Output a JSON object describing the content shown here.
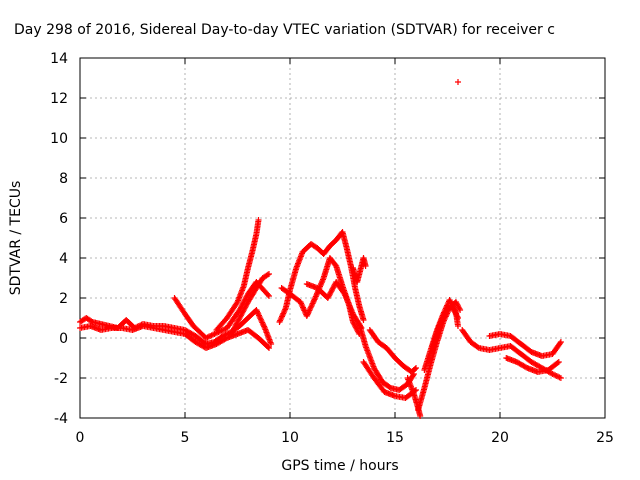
{
  "chart_data": {
    "type": "scatter",
    "title": "Day 298 of 2016, Sidereal Day-to-day VTEC variation (SDTVAR) for receiver c",
    "xlabel": "GPS time / hours",
    "ylabel": "SDTVAR / TECUs",
    "xlim": [
      0,
      25
    ],
    "ylim": [
      -4,
      14
    ],
    "xticks": [
      0,
      5,
      10,
      15,
      20,
      25
    ],
    "yticks": [
      -4,
      -2,
      0,
      2,
      4,
      6,
      8,
      10,
      12,
      14
    ],
    "grid": true,
    "legend": "none",
    "marker": "+",
    "color": "#ff0000",
    "series": [
      {
        "name": "band-a",
        "points": [
          [
            0,
            0.8
          ],
          [
            0.3,
            1.0
          ],
          [
            0.6,
            0.8
          ],
          [
            1.0,
            0.7
          ],
          [
            1.4,
            0.6
          ],
          [
            1.8,
            0.5
          ],
          [
            2.2,
            0.9
          ],
          [
            2.6,
            0.5
          ],
          [
            3.0,
            0.7
          ],
          [
            3.5,
            0.6
          ],
          [
            4.0,
            0.6
          ],
          [
            4.5,
            0.5
          ],
          [
            5.0,
            0.4
          ],
          [
            5.5,
            0.1
          ],
          [
            6.0,
            -0.3
          ],
          [
            6.4,
            -0.2
          ],
          [
            6.8,
            0.1
          ],
          [
            7.2,
            0.3
          ],
          [
            7.6,
            0.6
          ],
          [
            8.0,
            1.0
          ],
          [
            8.4,
            1.4
          ],
          [
            8.8,
            0.5
          ],
          [
            9.1,
            -0.3
          ]
        ]
      },
      {
        "name": "band-b",
        "points": [
          [
            0,
            0.5
          ],
          [
            0.5,
            0.6
          ],
          [
            1.0,
            0.4
          ],
          [
            1.5,
            0.5
          ],
          [
            2.0,
            0.5
          ],
          [
            2.5,
            0.4
          ],
          [
            3.0,
            0.6
          ],
          [
            3.5,
            0.5
          ],
          [
            4.0,
            0.4
          ],
          [
            4.5,
            0.3
          ],
          [
            5.0,
            0.2
          ],
          [
            5.5,
            -0.2
          ],
          [
            6.0,
            -0.5
          ],
          [
            6.5,
            -0.3
          ],
          [
            7.0,
            0.0
          ],
          [
            7.5,
            0.2
          ],
          [
            8.0,
            0.4
          ],
          [
            8.5,
            0.0
          ],
          [
            9.0,
            -0.5
          ]
        ]
      },
      {
        "name": "rise-1",
        "points": [
          [
            6.5,
            0.4
          ],
          [
            7.0,
            1.0
          ],
          [
            7.5,
            1.8
          ],
          [
            7.8,
            2.6
          ],
          [
            8.0,
            3.5
          ],
          [
            8.2,
            4.3
          ],
          [
            8.4,
            5.2
          ],
          [
            8.5,
            5.9
          ]
        ]
      },
      {
        "name": "rise-2",
        "points": [
          [
            7.2,
            0.2
          ],
          [
            7.6,
            1.0
          ],
          [
            8.0,
            1.8
          ],
          [
            8.4,
            2.5
          ],
          [
            8.7,
            3.0
          ],
          [
            9.0,
            3.2
          ]
        ]
      },
      {
        "name": "rise-3",
        "points": [
          [
            4.5,
            2.0
          ],
          [
            5.0,
            1.2
          ],
          [
            5.4,
            0.6
          ],
          [
            6.0,
            0.0
          ],
          [
            7.0,
            0.5
          ],
          [
            7.6,
            1.4
          ],
          [
            8.0,
            2.2
          ],
          [
            8.4,
            2.8
          ],
          [
            9.0,
            2.1
          ]
        ]
      },
      {
        "name": "hump-a",
        "points": [
          [
            9.5,
            0.8
          ],
          [
            9.8,
            1.5
          ],
          [
            10.0,
            2.4
          ],
          [
            10.3,
            3.5
          ],
          [
            10.6,
            4.3
          ],
          [
            11.0,
            4.7
          ],
          [
            11.3,
            4.5
          ],
          [
            11.6,
            4.2
          ],
          [
            11.9,
            4.6
          ],
          [
            12.2,
            4.9
          ],
          [
            12.5,
            5.3
          ],
          [
            12.7,
            4.5
          ],
          [
            12.9,
            3.6
          ],
          [
            13.1,
            2.5
          ],
          [
            13.3,
            1.6
          ],
          [
            13.5,
            0.9
          ]
        ]
      },
      {
        "name": "hump-b",
        "points": [
          [
            9.6,
            2.5
          ],
          [
            10.0,
            2.2
          ],
          [
            10.5,
            1.8
          ],
          [
            10.8,
            1.1
          ],
          [
            11.2,
            2.0
          ],
          [
            11.6,
            3.0
          ],
          [
            11.9,
            4.0
          ],
          [
            12.2,
            3.6
          ],
          [
            12.5,
            2.6
          ],
          [
            12.8,
            1.7
          ],
          [
            13.0,
            0.8
          ],
          [
            13.3,
            0.2
          ]
        ]
      },
      {
        "name": "hump-c",
        "points": [
          [
            10.8,
            2.7
          ],
          [
            11.3,
            2.5
          ],
          [
            11.8,
            2.0
          ],
          [
            12.2,
            2.8
          ],
          [
            12.6,
            2.2
          ],
          [
            13.0,
            1.2
          ],
          [
            13.4,
            0.5
          ]
        ]
      },
      {
        "name": "tail",
        "points": [
          [
            13.0,
            3.5
          ],
          [
            13.2,
            2.8
          ],
          [
            13.5,
            4.0
          ],
          [
            13.6,
            3.6
          ]
        ]
      },
      {
        "name": "trough-a",
        "points": [
          [
            13.3,
            0.7
          ],
          [
            13.6,
            -0.4
          ],
          [
            14.0,
            -1.5
          ],
          [
            14.4,
            -2.2
          ],
          [
            14.8,
            -2.5
          ],
          [
            15.2,
            -2.6
          ],
          [
            15.6,
            -2.3
          ],
          [
            15.9,
            -1.8
          ]
        ]
      },
      {
        "name": "trough-b",
        "points": [
          [
            13.8,
            0.4
          ],
          [
            14.2,
            -0.2
          ],
          [
            14.6,
            -0.5
          ],
          [
            15.0,
            -1.0
          ],
          [
            15.4,
            -1.4
          ],
          [
            15.8,
            -1.7
          ],
          [
            16.0,
            -1.5
          ]
        ]
      },
      {
        "name": "trough-c",
        "points": [
          [
            13.5,
            -1.2
          ],
          [
            14.0,
            -2.0
          ],
          [
            14.5,
            -2.7
          ],
          [
            15.0,
            -2.9
          ],
          [
            15.5,
            -3.0
          ],
          [
            16.0,
            -2.6
          ]
        ]
      },
      {
        "name": "dive",
        "points": [
          [
            15.6,
            -2.0
          ],
          [
            15.9,
            -2.8
          ],
          [
            16.1,
            -3.5
          ],
          [
            16.2,
            -3.9
          ]
        ]
      },
      {
        "name": "recovery-a",
        "points": [
          [
            16.1,
            -3.6
          ],
          [
            16.4,
            -2.5
          ],
          [
            16.7,
            -1.3
          ],
          [
            17.0,
            -0.2
          ],
          [
            17.3,
            0.8
          ],
          [
            17.6,
            1.5
          ],
          [
            17.9,
            1.8
          ],
          [
            18.1,
            1.4
          ]
        ]
      },
      {
        "name": "recovery-b",
        "points": [
          [
            16.4,
            -1.6
          ],
          [
            16.7,
            -0.6
          ],
          [
            17.0,
            0.4
          ],
          [
            17.3,
            1.2
          ],
          [
            17.6,
            1.9
          ],
          [
            17.9,
            1.3
          ],
          [
            18.0,
            0.6
          ]
        ]
      },
      {
        "name": "recovery-c",
        "points": [
          [
            16.8,
            -0.4
          ],
          [
            17.1,
            0.6
          ],
          [
            17.4,
            1.3
          ],
          [
            17.7,
            1.6
          ],
          [
            18.0,
            1.0
          ]
        ]
      },
      {
        "name": "late-a",
        "points": [
          [
            18.2,
            0.4
          ],
          [
            18.6,
            -0.2
          ],
          [
            19.0,
            -0.5
          ],
          [
            19.5,
            -0.6
          ],
          [
            20.0,
            -0.5
          ],
          [
            20.5,
            -0.4
          ],
          [
            21.0,
            -0.8
          ],
          [
            21.5,
            -1.2
          ],
          [
            22.0,
            -1.5
          ],
          [
            22.5,
            -1.8
          ],
          [
            22.9,
            -2.0
          ]
        ]
      },
      {
        "name": "late-b",
        "points": [
          [
            19.5,
            0.1
          ],
          [
            20.0,
            0.2
          ],
          [
            20.5,
            0.1
          ],
          [
            21.0,
            -0.3
          ],
          [
            21.5,
            -0.7
          ],
          [
            22.0,
            -0.9
          ],
          [
            22.5,
            -0.8
          ],
          [
            22.9,
            -0.2
          ]
        ]
      },
      {
        "name": "late-c",
        "points": [
          [
            20.3,
            -1.0
          ],
          [
            20.8,
            -1.2
          ],
          [
            21.3,
            -1.5
          ],
          [
            21.8,
            -1.7
          ],
          [
            22.3,
            -1.6
          ],
          [
            22.8,
            -1.2
          ]
        ]
      },
      {
        "name": "outlier",
        "points": [
          [
            18.0,
            12.8
          ]
        ]
      }
    ]
  }
}
